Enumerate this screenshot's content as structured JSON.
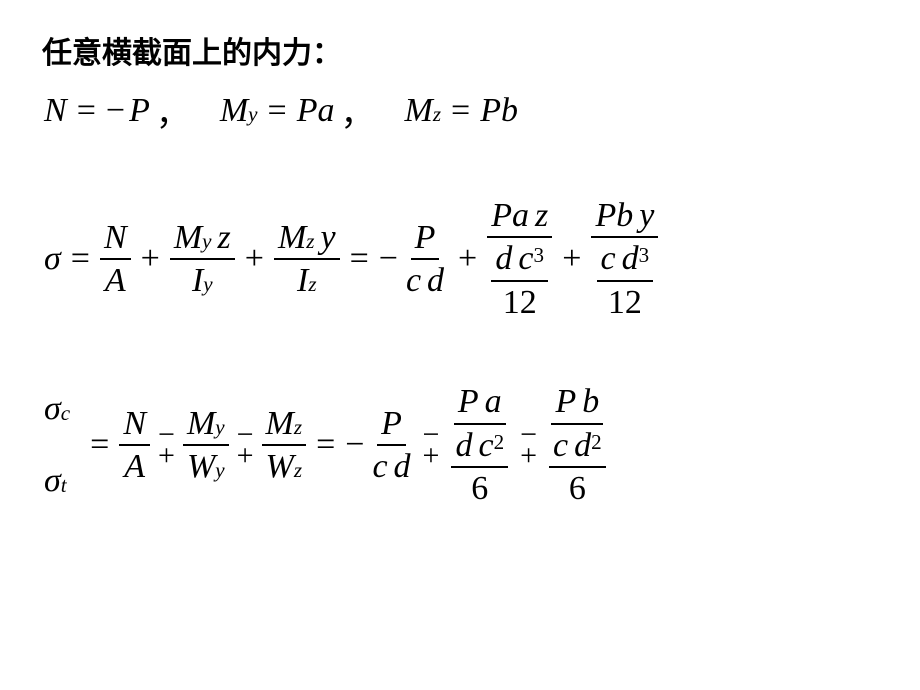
{
  "colors": {
    "text": "#000000",
    "background": "#ffffff",
    "rule": "#000000"
  },
  "fonts": {
    "heading_family": "SimHei / Microsoft YaHei",
    "math_family": "Times New Roman",
    "heading_size_pt": 22,
    "math_size_pt": 26,
    "subscript_scale": 0.62
  },
  "heading": "任意横截面上的内力：",
  "eq1": {
    "N": "N",
    "eq": "=",
    "minus": "−",
    "P": "P",
    "comma": "，",
    "My": "M",
    "My_sub": "y",
    "Pa": "Pa",
    "Mz": "M",
    "Mz_sub": "z",
    "Pb": "Pb"
  },
  "eq2": {
    "sigma": "σ",
    "t1_num": {
      "N": "N"
    },
    "t1_den": {
      "A": "A"
    },
    "t2_num": {
      "M": "M",
      "sub": "y",
      "z": "z"
    },
    "t2_den": {
      "I": "I",
      "sub": "y"
    },
    "t3_num": {
      "M": "M",
      "sub": "z",
      "y": "y"
    },
    "t3_den": {
      "I": "I",
      "sub": "z"
    },
    "r1_num": {
      "P": "P"
    },
    "r1_den": {
      "c": "c",
      "d": "d"
    },
    "r2_num": {
      "P": "P",
      "a": "a",
      "z": "z"
    },
    "r2_den_num": {
      "d": "d",
      "c": "c",
      "exp": "3"
    },
    "r2_den_den": "12",
    "r3_num": {
      "P": "P",
      "b": "b",
      "y": "y"
    },
    "r3_den_num": {
      "c": "c",
      "d": "d",
      "exp": "3"
    },
    "r3_den_den": "12"
  },
  "eq3": {
    "sigma_c": {
      "s": "σ",
      "sub": "c"
    },
    "sigma_t": {
      "s": "σ",
      "sub": "t"
    },
    "t1_num": {
      "N": "N"
    },
    "t1_den": {
      "A": "A"
    },
    "t2_num": {
      "M": "M",
      "sub": "y"
    },
    "t2_den": {
      "W": "W",
      "sub": "y"
    },
    "t3_num": {
      "M": "M",
      "sub": "z"
    },
    "t3_den": {
      "W": "W",
      "sub": "z"
    },
    "r1_num": {
      "P": "P"
    },
    "r1_den": {
      "c": "c",
      "d": "d"
    },
    "r2_num": {
      "P": "P",
      "a": "a"
    },
    "r2_den_num": {
      "d": "d",
      "c": "c",
      "exp": "2"
    },
    "r2_den_den": "6",
    "r3_num": {
      "P": "P",
      "b": "b"
    },
    "r3_den_num": {
      "c": "c",
      "d": "d",
      "exp": "2"
    },
    "r3_den_den": "6",
    "mp_top": "−",
    "mp_bot": "+"
  },
  "ops": {
    "eq": "=",
    "plus": "+",
    "minus": "−"
  }
}
